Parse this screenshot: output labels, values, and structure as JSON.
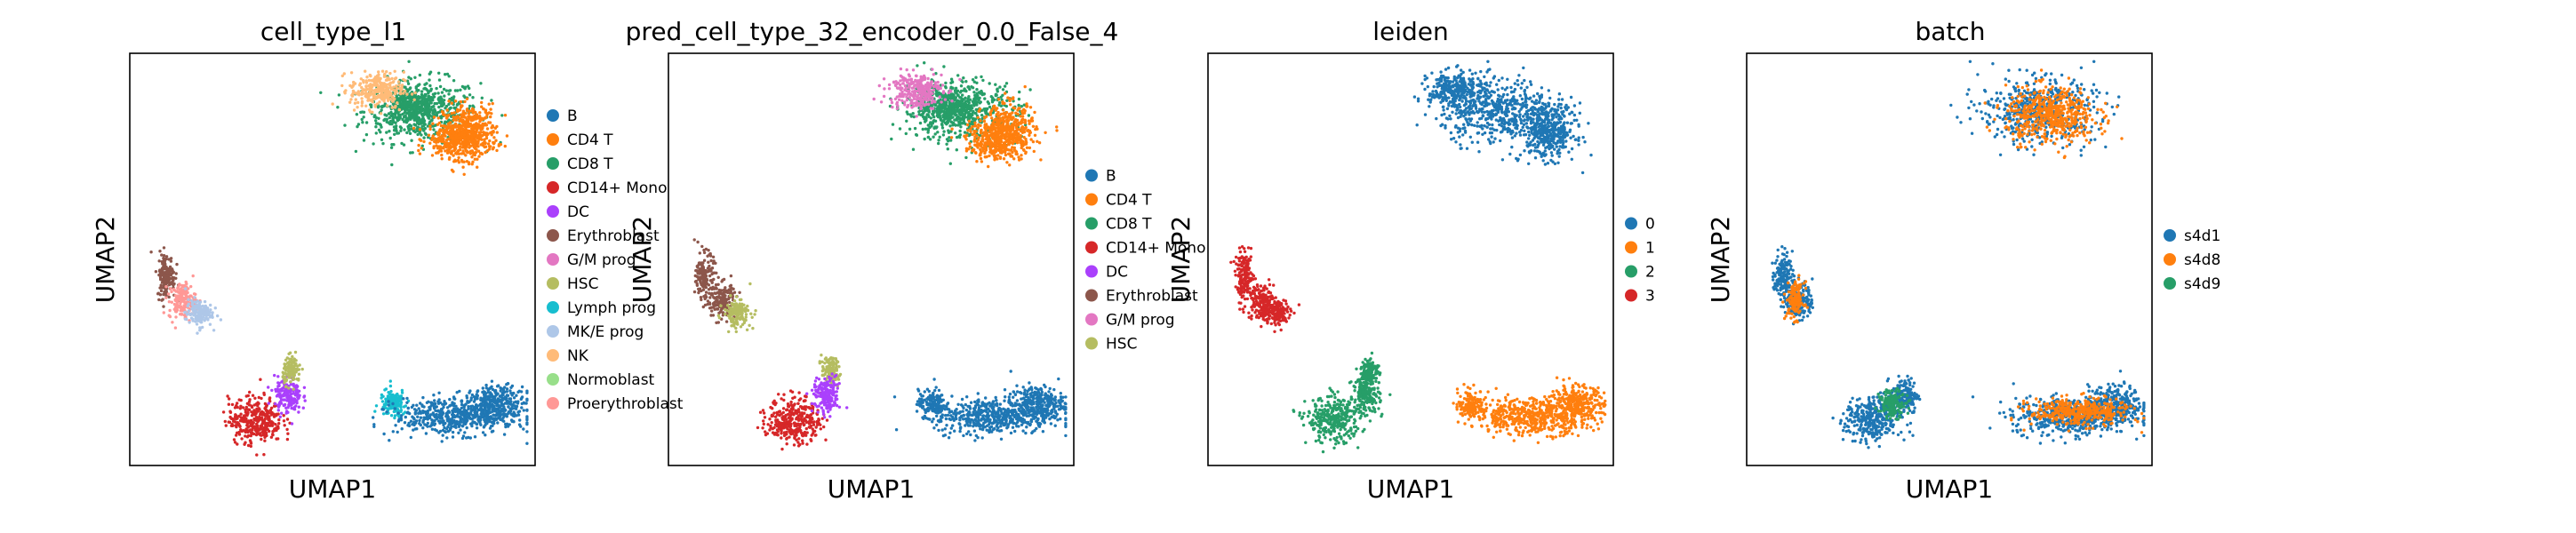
{
  "chart_data": [
    {
      "type": "scatter",
      "title": "cell_type_l1",
      "xlabel": "UMAP1",
      "ylabel": "UMAP2",
      "grid": false,
      "legend_position": "right",
      "legend": [
        {
          "name": "B",
          "color": "#1f77b4"
        },
        {
          "name": "CD4 T",
          "color": "#ff7f0e"
        },
        {
          "name": "CD8 T",
          "color": "#279e68"
        },
        {
          "name": "CD14+ Mono",
          "color": "#d62728"
        },
        {
          "name": "DC",
          "color": "#aa40fc"
        },
        {
          "name": "Erythroblast",
          "color": "#8c564b"
        },
        {
          "name": "G/M prog",
          "color": "#e377c2"
        },
        {
          "name": "HSC",
          "color": "#b5bd61"
        },
        {
          "name": "Lymph prog",
          "color": "#17becf"
        },
        {
          "name": "MK/E prog",
          "color": "#aec7e8"
        },
        {
          "name": "NK",
          "color": "#ffbb78"
        },
        {
          "name": "Normoblast",
          "color": "#98df8a"
        },
        {
          "name": "Proerythroblast",
          "color": "#ff9896"
        }
      ],
      "series": [
        {
          "name": "CD8 T",
          "points": [
            [
              0.72,
              0.86,
              0.13,
              0.07
            ],
            [
              0.69,
              0.87,
              0.06,
              0.04
            ]
          ]
        },
        {
          "name": "CD4 T",
          "points": [
            [
              0.84,
              0.81,
              0.06,
              0.06
            ],
            [
              0.8,
              0.79,
              0.06,
              0.04
            ]
          ]
        },
        {
          "name": "NK",
          "points": [
            [
              0.61,
              0.91,
              0.06,
              0.04
            ]
          ]
        },
        {
          "name": "Erythroblast",
          "points": [
            [
              0.09,
              0.46,
              0.02,
              0.05
            ]
          ]
        },
        {
          "name": "Proerythroblast",
          "points": [
            [
              0.13,
              0.4,
              0.03,
              0.04
            ]
          ]
        },
        {
          "name": "MK/E prog",
          "points": [
            [
              0.17,
              0.37,
              0.03,
              0.03
            ]
          ]
        },
        {
          "name": "CD14+ Mono",
          "points": [
            [
              0.31,
              0.11,
              0.06,
              0.05
            ]
          ]
        },
        {
          "name": "DC",
          "points": [
            [
              0.39,
              0.17,
              0.03,
              0.04
            ]
          ]
        },
        {
          "name": "HSC",
          "points": [
            [
              0.4,
              0.23,
              0.02,
              0.03
            ]
          ]
        },
        {
          "name": "Lymph prog",
          "points": [
            [
              0.65,
              0.15,
              0.03,
              0.03
            ]
          ]
        },
        {
          "name": "B",
          "points": [
            [
              0.8,
              0.12,
              0.13,
              0.04
            ],
            [
              0.91,
              0.15,
              0.06,
              0.04
            ]
          ]
        }
      ]
    },
    {
      "type": "scatter",
      "title": "pred_cell_type_32_encoder_0.0_False_4",
      "xlabel": "UMAP1",
      "ylabel": "UMAP2",
      "grid": false,
      "legend_position": "right",
      "legend": [
        {
          "name": "B",
          "color": "#1f77b4"
        },
        {
          "name": "CD4 T",
          "color": "#ff7f0e"
        },
        {
          "name": "CD8 T",
          "color": "#279e68"
        },
        {
          "name": "CD14+ Mono",
          "color": "#d62728"
        },
        {
          "name": "DC",
          "color": "#aa40fc"
        },
        {
          "name": "Erythroblast",
          "color": "#8c564b"
        },
        {
          "name": "G/M prog",
          "color": "#e377c2"
        },
        {
          "name": "HSC",
          "color": "#b5bd61"
        }
      ],
      "series": [
        {
          "name": "CD8 T",
          "points": [
            [
              0.72,
              0.86,
              0.13,
              0.07
            ],
            [
              0.69,
              0.87,
              0.06,
              0.04
            ]
          ]
        },
        {
          "name": "CD4 T",
          "points": [
            [
              0.84,
              0.81,
              0.06,
              0.06
            ],
            [
              0.8,
              0.79,
              0.06,
              0.04
            ]
          ]
        },
        {
          "name": "G/M prog",
          "points": [
            [
              0.61,
              0.91,
              0.06,
              0.04
            ]
          ]
        },
        {
          "name": "Erythroblast",
          "points": [
            [
              0.09,
              0.46,
              0.02,
              0.05
            ],
            [
              0.13,
              0.4,
              0.03,
              0.04
            ]
          ]
        },
        {
          "name": "HSC",
          "points": [
            [
              0.17,
              0.37,
              0.03,
              0.03
            ],
            [
              0.4,
              0.23,
              0.02,
              0.03
            ]
          ]
        },
        {
          "name": "CD14+ Mono",
          "points": [
            [
              0.31,
              0.11,
              0.06,
              0.05
            ]
          ]
        },
        {
          "name": "DC",
          "points": [
            [
              0.39,
              0.17,
              0.03,
              0.04
            ]
          ]
        },
        {
          "name": "B",
          "points": [
            [
              0.8,
              0.12,
              0.13,
              0.04
            ],
            [
              0.91,
              0.15,
              0.06,
              0.04
            ],
            [
              0.65,
              0.15,
              0.03,
              0.03
            ]
          ]
        }
      ]
    },
    {
      "type": "scatter",
      "title": "leiden",
      "xlabel": "UMAP1",
      "ylabel": "UMAP2",
      "grid": false,
      "legend_position": "right",
      "legend": [
        {
          "name": "0",
          "color": "#1f77b4"
        },
        {
          "name": "1",
          "color": "#ff7f0e"
        },
        {
          "name": "2",
          "color": "#279e68"
        },
        {
          "name": "3",
          "color": "#d62728"
        }
      ],
      "series": [
        {
          "name": "0",
          "points": [
            [
              0.72,
              0.86,
              0.13,
              0.07
            ],
            [
              0.84,
              0.81,
              0.06,
              0.06
            ],
            [
              0.61,
              0.91,
              0.06,
              0.04
            ]
          ]
        },
        {
          "name": "1",
          "points": [
            [
              0.8,
              0.12,
              0.13,
              0.04
            ],
            [
              0.91,
              0.15,
              0.06,
              0.04
            ],
            [
              0.65,
              0.15,
              0.03,
              0.03
            ]
          ]
        },
        {
          "name": "2",
          "points": [
            [
              0.31,
              0.11,
              0.06,
              0.05
            ],
            [
              0.39,
              0.17,
              0.03,
              0.04
            ],
            [
              0.4,
              0.23,
              0.02,
              0.03
            ]
          ]
        },
        {
          "name": "3",
          "points": [
            [
              0.09,
              0.46,
              0.02,
              0.05
            ],
            [
              0.13,
              0.4,
              0.03,
              0.04
            ],
            [
              0.17,
              0.37,
              0.03,
              0.03
            ]
          ]
        }
      ]
    },
    {
      "type": "scatter",
      "title": "batch",
      "xlabel": "UMAP1",
      "ylabel": "UMAP2",
      "grid": false,
      "legend_position": "right",
      "legend": [
        {
          "name": "s4d1",
          "color": "#1f77b4"
        },
        {
          "name": "s4d8",
          "color": "#ff7f0e"
        },
        {
          "name": "s4d9",
          "color": "#279e68"
        }
      ],
      "series": [
        {
          "name": "s4d1",
          "points": [
            [
              0.72,
              0.86,
              0.13,
              0.07
            ],
            [
              0.09,
              0.46,
              0.02,
              0.05
            ],
            [
              0.13,
              0.4,
              0.03,
              0.04
            ],
            [
              0.31,
              0.11,
              0.06,
              0.05
            ],
            [
              0.39,
              0.17,
              0.03,
              0.04
            ],
            [
              0.8,
              0.12,
              0.13,
              0.04
            ],
            [
              0.91,
              0.15,
              0.06,
              0.04
            ]
          ]
        },
        {
          "name": "s4d8",
          "points": [
            [
              0.75,
              0.85,
              0.1,
              0.06
            ],
            [
              0.12,
              0.4,
              0.02,
              0.04
            ],
            [
              0.82,
              0.13,
              0.11,
              0.03
            ]
          ]
        },
        {
          "name": "s4d9",
          "points": [
            [
              0.36,
              0.15,
              0.03,
              0.03
            ]
          ]
        }
      ]
    }
  ]
}
